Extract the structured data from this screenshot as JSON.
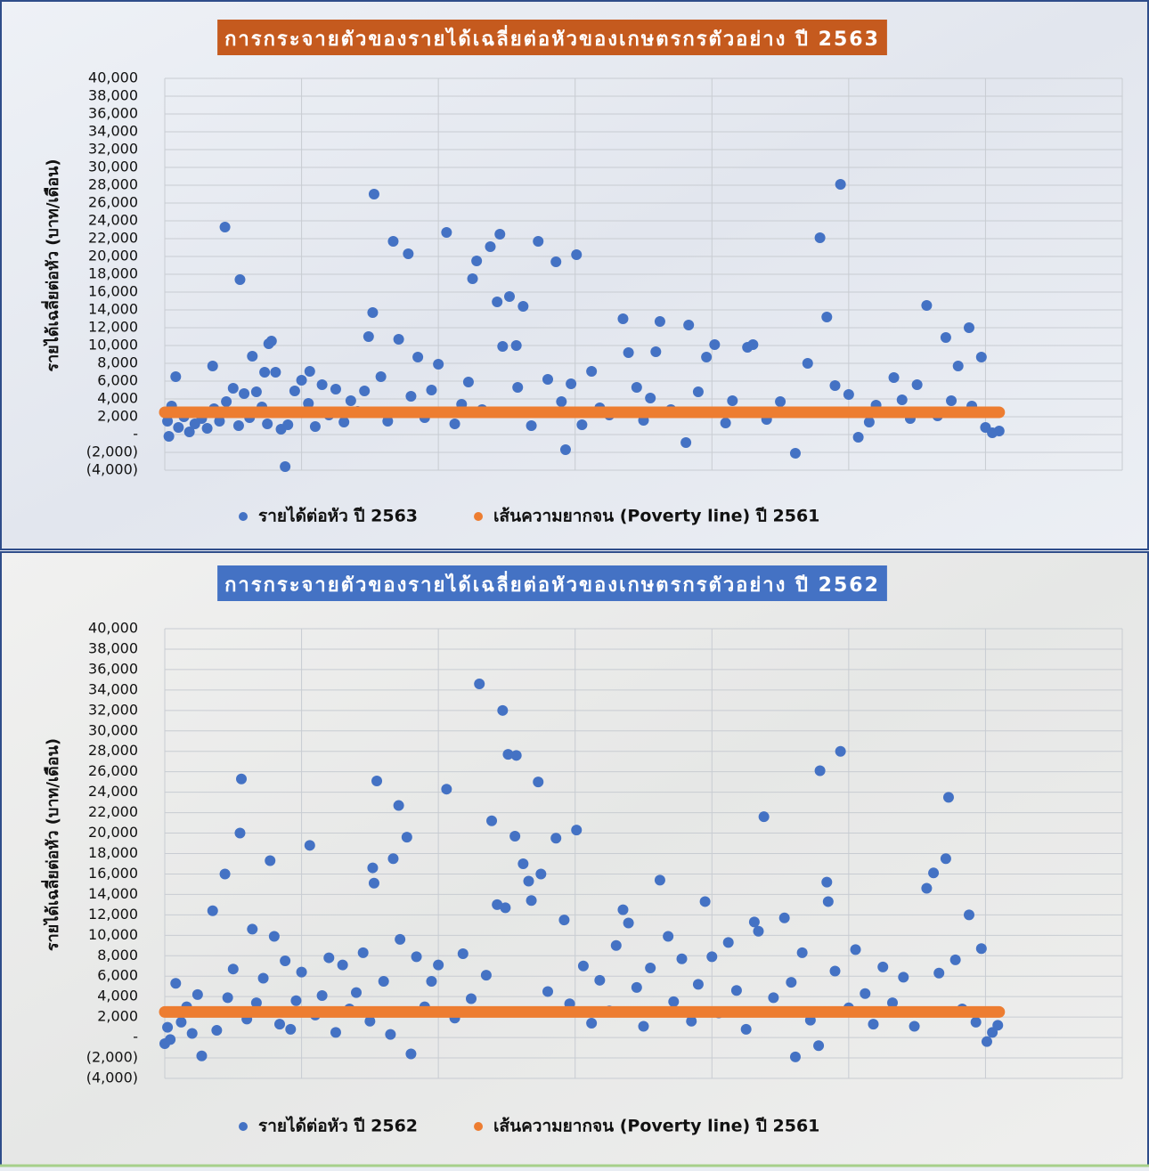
{
  "chart_data": [
    {
      "type": "scatter",
      "title": "การกระจายตัวของรายได้เฉลี่ยต่อหัวของเกษตรกรตัวอย่าง ปี 2563",
      "title_color": "#c55a1e",
      "ylabel": "รายได้เฉลี่ยต่อหัว (บาท/เดือน)",
      "xlim": [
        0,
        700
      ],
      "xticks": [
        0,
        100,
        200,
        300,
        400,
        500,
        600,
        700
      ],
      "ylim": [
        -4000,
        40000
      ],
      "yticks": [
        {
          "value": -4000,
          "label": "(4,000)"
        },
        {
          "value": -2000,
          "label": "(2,000)"
        },
        {
          "value": 0,
          "label": "-"
        },
        {
          "value": 2000,
          "label": "2,000"
        },
        {
          "value": 4000,
          "label": "4,000"
        },
        {
          "value": 6000,
          "label": "6,000"
        },
        {
          "value": 8000,
          "label": "8,000"
        },
        {
          "value": 10000,
          "label": "10,000"
        },
        {
          "value": 12000,
          "label": "12,000"
        },
        {
          "value": 14000,
          "label": "14,000"
        },
        {
          "value": 16000,
          "label": "16,000"
        },
        {
          "value": 18000,
          "label": "18,000"
        },
        {
          "value": 20000,
          "label": "20,000"
        },
        {
          "value": 22000,
          "label": "22,000"
        },
        {
          "value": 24000,
          "label": "24,000"
        },
        {
          "value": 26000,
          "label": "26,000"
        },
        {
          "value": 28000,
          "label": "28,000"
        },
        {
          "value": 30000,
          "label": "30,000"
        },
        {
          "value": 32000,
          "label": "32,000"
        },
        {
          "value": 34000,
          "label": "34,000"
        },
        {
          "value": 36000,
          "label": "36,000"
        },
        {
          "value": 38000,
          "label": "38,000"
        },
        {
          "value": 40000,
          "label": "40,000"
        }
      ],
      "grid": true,
      "series": [
        {
          "name": "รายได้ต่อหัว ปี 2563",
          "color": "#4472c4",
          "type": "scatter",
          "x": [
            2,
            3,
            5,
            8,
            10,
            14,
            18,
            22,
            27,
            31,
            35,
            36,
            40,
            44,
            45,
            50,
            54,
            55,
            58,
            62,
            64,
            67,
            71,
            73,
            75,
            76,
            78,
            80,
            81,
            85,
            88,
            90,
            95,
            100,
            105,
            106,
            110,
            115,
            120,
            125,
            131,
            136,
            141,
            146,
            149,
            152,
            153,
            158,
            163,
            167,
            171,
            178,
            180,
            185,
            190,
            195,
            200,
            206,
            212,
            217,
            222,
            225,
            228,
            232,
            238,
            243,
            245,
            247,
            252,
            257,
            258,
            262,
            268,
            273,
            280,
            286,
            290,
            293,
            297,
            301,
            305,
            312,
            318,
            325,
            335,
            339,
            345,
            350,
            355,
            359,
            362,
            370,
            381,
            383,
            390,
            396,
            402,
            410,
            415,
            426,
            430,
            440,
            450,
            461,
            470,
            479,
            484,
            490,
            494,
            500,
            507,
            515,
            520,
            533,
            539,
            545,
            550,
            557,
            565,
            571,
            575,
            580,
            588,
            590,
            597,
            600,
            605,
            610
          ],
          "values": [
            1500,
            -200,
            3200,
            6500,
            800,
            2000,
            300,
            1200,
            1800,
            700,
            7700,
            2900,
            1500,
            23300,
            3700,
            5200,
            1000,
            17400,
            4600,
            1900,
            8800,
            4800,
            3100,
            7000,
            1200,
            10200,
            10500,
            2500,
            7000,
            600,
            -3600,
            1100,
            4900,
            6100,
            3500,
            7100,
            900,
            5600,
            2200,
            5100,
            1400,
            3800,
            2600,
            4900,
            11000,
            13700,
            27000,
            6500,
            1500,
            21700,
            10700,
            20300,
            4300,
            8700,
            1900,
            5000,
            7900,
            22700,
            1200,
            3400,
            5900,
            17500,
            19500,
            2800,
            21100,
            14900,
            22500,
            9900,
            15500,
            10000,
            5300,
            14400,
            1000,
            21700,
            6200,
            19400,
            3700,
            -1700,
            5700,
            20200,
            1100,
            7100,
            3000,
            2200,
            13000,
            9200,
            5300,
            1600,
            4100,
            9300,
            12700,
            2800,
            -900,
            12300,
            4800,
            8700,
            10100,
            1300,
            3800,
            9800,
            10100,
            1700,
            3700,
            -2100,
            8000,
            22100,
            13200,
            5500,
            28100,
            4500,
            -300,
            1400,
            3300,
            6400,
            3900,
            1800,
            5600,
            14500,
            2100,
            10900,
            3800,
            7700,
            12000,
            3200,
            8700,
            800,
            200,
            400
          ]
        },
        {
          "name": "เส้นความยากจน (Poverty line) ปี 2561",
          "color": "#ed7d31",
          "type": "line",
          "x": [
            0,
            610
          ],
          "values": [
            2500,
            2500
          ]
        }
      ]
    },
    {
      "type": "scatter",
      "title": "การกระจายตัวของรายได้เฉลี่ยต่อหัวของเกษตรกรตัวอย่าง ปี 2562",
      "title_color": "#4472c4",
      "ylabel": "รายได้เฉลี่ยต่อหัว (บาท/เดือน)",
      "xlim": [
        0,
        700
      ],
      "xticks": [
        0,
        100,
        200,
        300,
        400,
        500,
        600,
        700
      ],
      "ylim": [
        -4000,
        40000
      ],
      "yticks": [
        {
          "value": -4000,
          "label": "(4,000)"
        },
        {
          "value": -2000,
          "label": "(2,000)"
        },
        {
          "value": 0,
          "label": "-"
        },
        {
          "value": 2000,
          "label": "2,000"
        },
        {
          "value": 4000,
          "label": "4,000"
        },
        {
          "value": 6000,
          "label": "6,000"
        },
        {
          "value": 8000,
          "label": "8,000"
        },
        {
          "value": 10000,
          "label": "10,000"
        },
        {
          "value": 12000,
          "label": "12,000"
        },
        {
          "value": 14000,
          "label": "14,000"
        },
        {
          "value": 16000,
          "label": "16,000"
        },
        {
          "value": 18000,
          "label": "18,000"
        },
        {
          "value": 20000,
          "label": "20,000"
        },
        {
          "value": 22000,
          "label": "22,000"
        },
        {
          "value": 24000,
          "label": "24,000"
        },
        {
          "value": 26000,
          "label": "26,000"
        },
        {
          "value": 28000,
          "label": "28,000"
        },
        {
          "value": 30000,
          "label": "30,000"
        },
        {
          "value": 32000,
          "label": "32,000"
        },
        {
          "value": 34000,
          "label": "34,000"
        },
        {
          "value": 36000,
          "label": "36,000"
        },
        {
          "value": 38000,
          "label": "38,000"
        },
        {
          "value": 40000,
          "label": "40,000"
        }
      ],
      "grid": true,
      "series": [
        {
          "name": "รายได้ต่อหัว ปี 2562",
          "color": "#4472c4",
          "type": "scatter",
          "x": [
            0,
            2,
            4,
            8,
            12,
            16,
            20,
            24,
            27,
            30,
            35,
            38,
            44,
            46,
            50,
            55,
            56,
            60,
            64,
            67,
            72,
            77,
            80,
            84,
            88,
            92,
            96,
            100,
            106,
            110,
            115,
            120,
            125,
            130,
            135,
            140,
            145,
            150,
            152,
            153,
            155,
            160,
            165,
            167,
            171,
            172,
            177,
            180,
            184,
            190,
            195,
            200,
            206,
            212,
            218,
            224,
            230,
            235,
            239,
            243,
            247,
            249,
            251,
            256,
            257,
            262,
            266,
            268,
            273,
            275,
            280,
            286,
            292,
            296,
            301,
            306,
            312,
            318,
            325,
            330,
            335,
            339,
            345,
            350,
            355,
            362,
            368,
            372,
            378,
            385,
            390,
            395,
            400,
            405,
            412,
            418,
            425,
            431,
            434,
            438,
            445,
            453,
            458,
            461,
            466,
            472,
            478,
            479,
            484,
            485,
            490,
            494,
            500,
            505,
            512,
            518,
            525,
            532,
            540,
            548,
            557,
            562,
            566,
            571,
            573,
            578,
            583,
            588,
            593,
            597,
            601,
            605,
            609
          ],
          "values": [
            -600,
            1000,
            -200,
            5300,
            1500,
            3000,
            400,
            4200,
            -1800,
            2500,
            12400,
            700,
            16000,
            3900,
            6700,
            20000,
            25300,
            1800,
            10600,
            3400,
            5800,
            17300,
            9900,
            1300,
            7500,
            800,
            3600,
            6400,
            18800,
            2200,
            4100,
            7800,
            500,
            7100,
            2800,
            4400,
            8300,
            1600,
            16600,
            15100,
            25100,
            5500,
            300,
            17500,
            22700,
            9600,
            19600,
            -1600,
            7900,
            3000,
            5500,
            7100,
            24300,
            1900,
            8200,
            3800,
            34600,
            6100,
            21200,
            13000,
            32000,
            12700,
            27700,
            19700,
            27600,
            17000,
            15300,
            13400,
            25000,
            16000,
            4500,
            19500,
            11500,
            3300,
            20300,
            7000,
            1400,
            5600,
            2600,
            9000,
            12500,
            11200,
            4900,
            1100,
            6800,
            15400,
            9900,
            3500,
            7700,
            1600,
            5200,
            13300,
            7900,
            2400,
            9300,
            4600,
            800,
            11300,
            10400,
            21600,
            3900,
            11700,
            5400,
            -1900,
            8300,
            1700,
            -800,
            26100,
            15200,
            13300,
            6500,
            28000,
            2900,
            8600,
            4300,
            1300,
            6900,
            3400,
            5900,
            1100,
            14600,
            16100,
            6300,
            17500,
            23500,
            7600,
            2800,
            12000,
            1500,
            8700,
            -400,
            500,
            1200
          ]
        },
        {
          "name": "เส้นความยากจน (Poverty line) ปี 2561",
          "color": "#ed7d31",
          "type": "line",
          "x": [
            0,
            610
          ],
          "values": [
            2500,
            2500
          ]
        }
      ]
    }
  ]
}
